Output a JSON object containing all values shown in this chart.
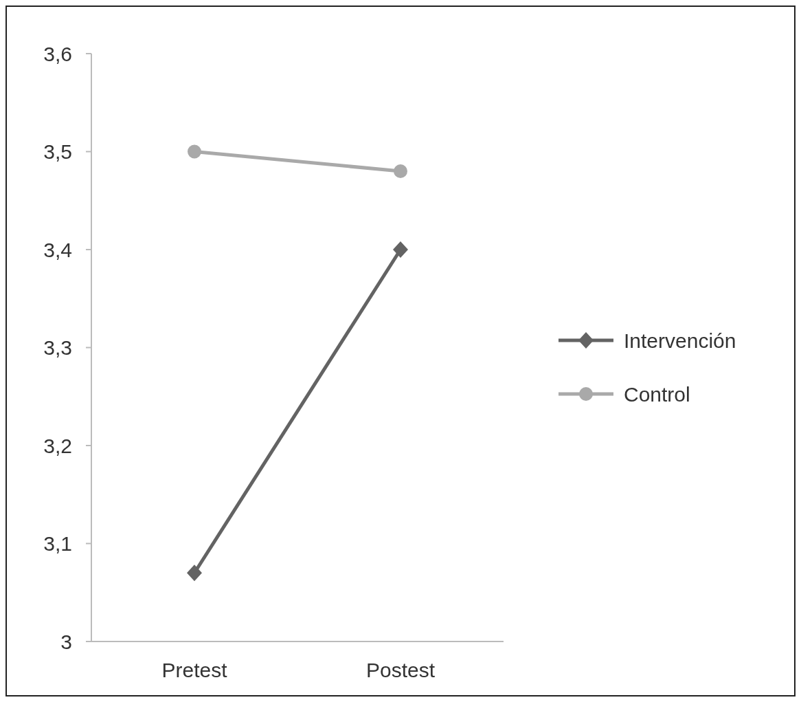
{
  "chart_data": {
    "type": "line",
    "categories": [
      "Pretest",
      "Postest"
    ],
    "series": [
      {
        "name": "Intervención",
        "color": "#636363",
        "values": [
          3.07,
          3.4
        ],
        "marker": "diamond"
      },
      {
        "name": "Control",
        "color": "#a9a9a9",
        "values": [
          3.5,
          3.48
        ],
        "marker": "circle"
      }
    ],
    "ylim": [
      3,
      3.6
    ],
    "yticks": [
      {
        "value": 3,
        "label": "3"
      },
      {
        "value": 3.1,
        "label": "3,1"
      },
      {
        "value": 3.2,
        "label": "3,2"
      },
      {
        "value": 3.3,
        "label": "3,3"
      },
      {
        "value": 3.4,
        "label": "3,4"
      },
      {
        "value": 3.5,
        "label": "3,5"
      },
      {
        "value": 3.6,
        "label": "3,6"
      }
    ],
    "legend": "right",
    "line_style": "solid"
  }
}
